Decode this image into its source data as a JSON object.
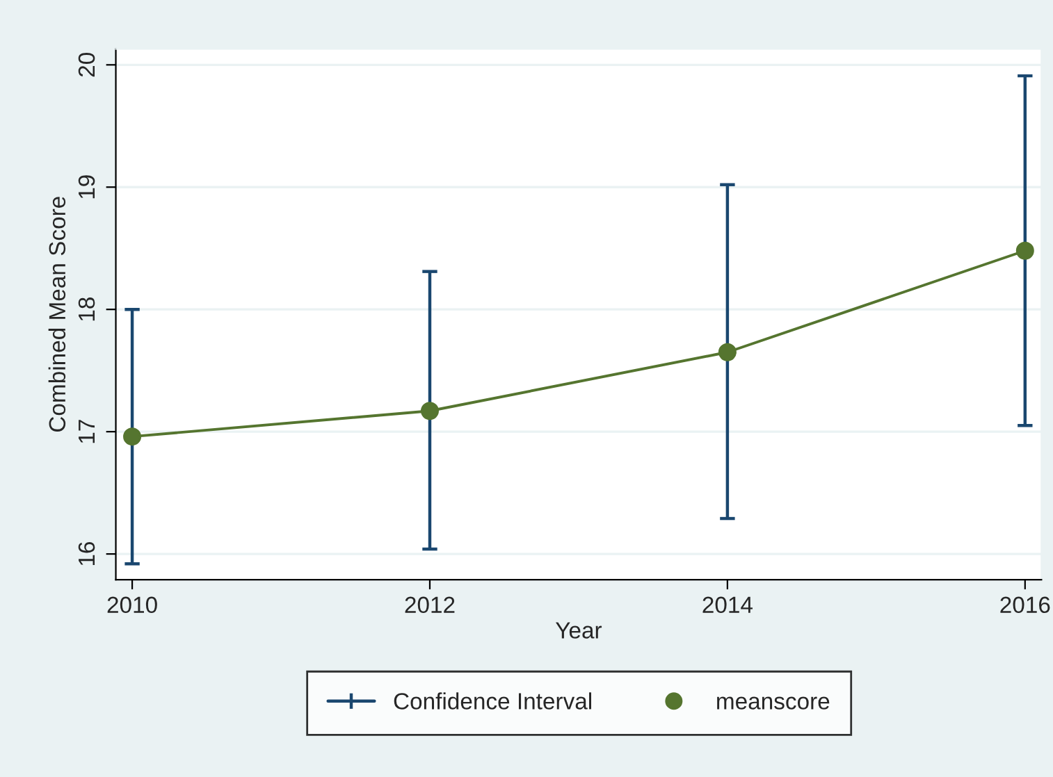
{
  "chart_data": {
    "type": "line",
    "xlabel": "Year",
    "ylabel": "Combined Mean Score",
    "x": [
      2010,
      2012,
      2014,
      2016
    ],
    "series": [
      {
        "name": "meanscore",
        "color": "#55752f",
        "values": [
          16.96,
          17.17,
          17.65,
          18.48
        ],
        "errors": [
          [
            15.92,
            18.0
          ],
          [
            16.04,
            18.31
          ],
          [
            16.29,
            19.02
          ],
          [
            17.05,
            19.91
          ]
        ]
      }
    ],
    "annotations": [
      "Confidence Interval"
    ],
    "xlim": [
      2009.89,
      2016.11
    ],
    "xticks": [
      2010,
      2012,
      2014,
      2016
    ],
    "ylim": [
      15.79,
      20.13
    ],
    "yticks": [
      16,
      17,
      18,
      19,
      20
    ],
    "grid": "y",
    "legend": "bottom",
    "marker": "circle",
    "line_style": "solid"
  }
}
